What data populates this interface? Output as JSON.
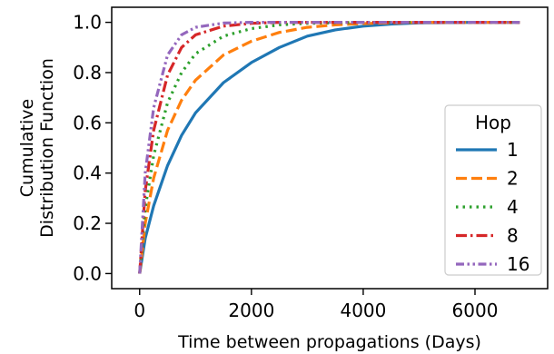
{
  "chart_data": {
    "type": "line",
    "xlabel": "Time between propagations (Days)",
    "ylabel_lines": [
      "Cumulative",
      "Distribution Function"
    ],
    "xlim": [
      -500,
      7300
    ],
    "ylim": [
      -0.06,
      1.06
    ],
    "xticks": [
      0,
      2000,
      4000,
      6000
    ],
    "xtick_labels": [
      "0",
      "2000",
      "4000",
      "6000"
    ],
    "yticks": [
      0.0,
      0.2,
      0.4,
      0.6,
      0.8,
      1.0
    ],
    "ytick_labels": [
      "0.0",
      "0.2",
      "0.4",
      "0.6",
      "0.8",
      "1.0"
    ],
    "grid": false,
    "legend": {
      "title": "Hop",
      "placement": "lower-right"
    },
    "series": [
      {
        "name": "1",
        "color": "#1f77b4",
        "style": "solid",
        "x": [
          0,
          100,
          250,
          500,
          750,
          1000,
          1500,
          2000,
          2500,
          3000,
          3500,
          4000,
          4500,
          5000,
          6000,
          6800
        ],
        "y": [
          0.0,
          0.14,
          0.27,
          0.43,
          0.55,
          0.64,
          0.76,
          0.84,
          0.9,
          0.945,
          0.97,
          0.985,
          0.993,
          0.998,
          1.0,
          1.0
        ]
      },
      {
        "name": "2",
        "color": "#ff7f0e",
        "style": "dashed",
        "x": [
          0,
          100,
          250,
          500,
          750,
          1000,
          1500,
          2000,
          2500,
          3000,
          3500,
          4000,
          4500,
          5000,
          6000,
          6800
        ],
        "y": [
          0.0,
          0.2,
          0.38,
          0.57,
          0.69,
          0.77,
          0.87,
          0.925,
          0.96,
          0.98,
          0.99,
          0.995,
          0.998,
          1.0,
          1.0,
          1.0
        ]
      },
      {
        "name": "4",
        "color": "#2ca02c",
        "style": "dotted",
        "x": [
          0,
          100,
          250,
          500,
          750,
          1000,
          1500,
          2000,
          2500,
          3000,
          4000,
          5000,
          6000,
          6800
        ],
        "y": [
          0.0,
          0.26,
          0.47,
          0.68,
          0.8,
          0.875,
          0.945,
          0.975,
          0.99,
          0.996,
          1.0,
          1.0,
          1.0,
          1.0
        ]
      },
      {
        "name": "8",
        "color": "#d62728",
        "style": "dashdot",
        "x": [
          0,
          100,
          250,
          500,
          750,
          1000,
          1500,
          2000,
          2500,
          3000,
          4000,
          5000,
          6000,
          6800
        ],
        "y": [
          0.0,
          0.33,
          0.57,
          0.79,
          0.9,
          0.95,
          0.985,
          0.996,
          1.0,
          1.0,
          1.0,
          1.0,
          1.0,
          1.0
        ]
      },
      {
        "name": "16",
        "color": "#9467bd",
        "style": "dashdotdot",
        "x": [
          0,
          100,
          250,
          500,
          750,
          1000,
          1500,
          2000,
          3000,
          4000,
          5000,
          6000,
          6800
        ],
        "y": [
          0.0,
          0.4,
          0.66,
          0.87,
          0.95,
          0.98,
          0.997,
          1.0,
          1.0,
          1.0,
          1.0,
          1.0,
          1.0
        ]
      }
    ]
  }
}
